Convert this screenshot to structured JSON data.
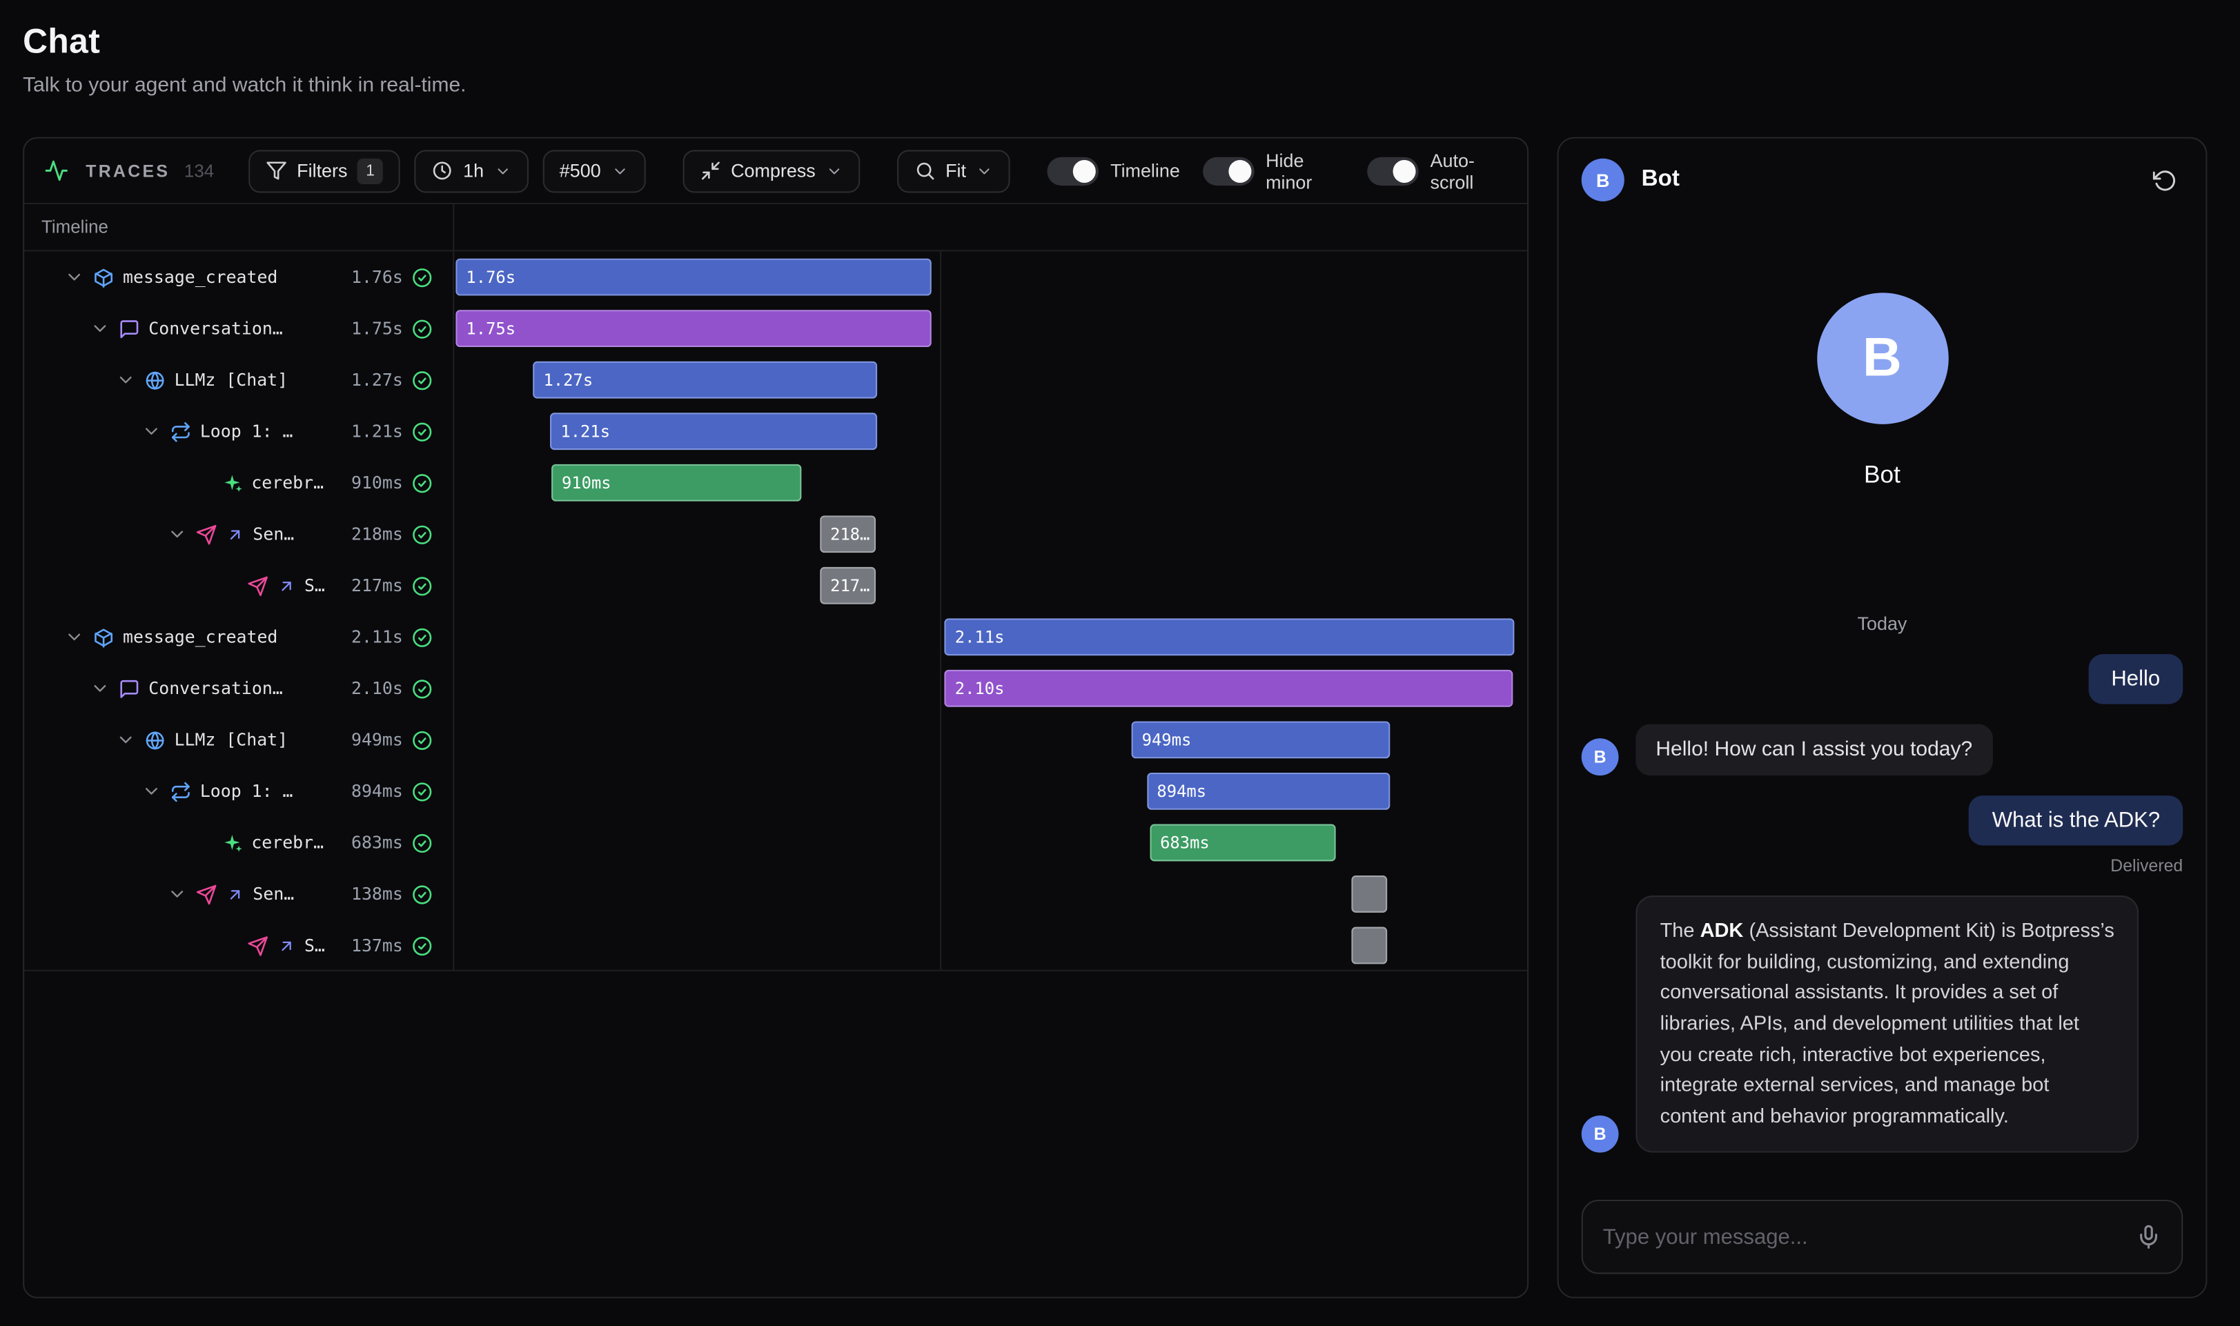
{
  "page": {
    "title": "Chat",
    "subtitle": "Talk to your agent and watch it think in real-time."
  },
  "colors": {
    "bars": {
      "blue": {
        "bg": "#4b66c4",
        "border": "#8096e0"
      },
      "purple": {
        "bg": "#9152cc",
        "border": "#b486e2"
      },
      "green": {
        "bg": "#3c9c63",
        "border": "#7cc49a"
      },
      "gray": {
        "bg": "#75797f",
        "border": "#a3a7ad"
      }
    },
    "check_green": "#4ade80",
    "avatar_blue": "#5f80e8",
    "avatar_light_blue": "#8ba4f2"
  },
  "traces_panel": {
    "toolbar": {
      "traces_label": "TRACES",
      "traces_count": "134",
      "filters_label": "Filters",
      "filters_count": "1",
      "time_range": "1h",
      "limit": "#500",
      "compress_label": "Compress",
      "fit_label": "Fit",
      "toggles": [
        {
          "label": "Timeline",
          "on": true
        },
        {
          "label": "Hide minor",
          "on": true
        },
        {
          "label": "Auto-scroll",
          "on": true
        }
      ]
    },
    "column_header": "Timeline",
    "rows": [
      {
        "name": "message_created",
        "duration": "1.76s",
        "level": 0,
        "chevron": true,
        "icons": [
          "cube"
        ],
        "bar": {
          "label": "1.76s",
          "color": "blue",
          "left": 0.3,
          "width": 44.3
        }
      },
      {
        "name": "Conversation…",
        "duration": "1.75s",
        "level": 1,
        "chevron": true,
        "icons": [
          "chat"
        ],
        "bar": {
          "label": "1.75s",
          "color": "purple",
          "left": 0.3,
          "width": 44.3
        }
      },
      {
        "name": "LLMz [Chat]",
        "duration": "1.27s",
        "level": 2,
        "chevron": true,
        "icons": [
          "globe"
        ],
        "bar": {
          "label": "1.27s",
          "color": "blue",
          "left": 7.5,
          "width": 32.0
        }
      },
      {
        "name": "Loop 1: …",
        "duration": "1.21s",
        "level": 3,
        "chevron": true,
        "icons": [
          "loop"
        ],
        "bar": {
          "label": "1.21s",
          "color": "blue",
          "left": 9.1,
          "width": 30.4
        }
      },
      {
        "name": "cerebr…",
        "duration": "910ms",
        "level": 5,
        "chevron": false,
        "icons": [
          "sparkles"
        ],
        "bar": {
          "label": "910ms",
          "color": "green",
          "left": 9.2,
          "width": 23.3
        }
      },
      {
        "name": "Sen…",
        "duration": "218ms",
        "level": 4,
        "chevron": true,
        "icons": [
          "send",
          "arrow-up-right"
        ],
        "bar": {
          "label": "218…",
          "color": "gray",
          "left": 34.2,
          "width": 5.2
        }
      },
      {
        "name": "S…",
        "duration": "217ms",
        "level": 6,
        "chevron": false,
        "icons": [
          "send",
          "arrow-up-right"
        ],
        "bar": {
          "label": "217…",
          "color": "gray",
          "left": 34.2,
          "width": 5.2
        }
      },
      {
        "name": "message_created",
        "duration": "2.11s",
        "level": 0,
        "chevron": true,
        "icons": [
          "cube"
        ],
        "bar": {
          "label": "2.11s",
          "color": "blue",
          "left": 45.8,
          "width": 53.0
        }
      },
      {
        "name": "Conversation…",
        "duration": "2.10s",
        "level": 1,
        "chevron": true,
        "icons": [
          "chat"
        ],
        "bar": {
          "label": "2.10s",
          "color": "purple",
          "left": 45.8,
          "width": 52.9
        }
      },
      {
        "name": "LLMz [Chat]",
        "duration": "949ms",
        "level": 2,
        "chevron": true,
        "icons": [
          "globe"
        ],
        "bar": {
          "label": "949ms",
          "color": "blue",
          "left": 63.2,
          "width": 24.1
        }
      },
      {
        "name": "Loop 1: …",
        "duration": "894ms",
        "level": 3,
        "chevron": true,
        "icons": [
          "loop"
        ],
        "bar": {
          "label": "894ms",
          "color": "blue",
          "left": 64.6,
          "width": 22.6
        }
      },
      {
        "name": "cerebr…",
        "duration": "683ms",
        "level": 5,
        "chevron": false,
        "icons": [
          "sparkles"
        ],
        "bar": {
          "label": "683ms",
          "color": "green",
          "left": 64.9,
          "width": 17.3
        }
      },
      {
        "name": "Sen…",
        "duration": "138ms",
        "level": 4,
        "chevron": true,
        "icons": [
          "send",
          "arrow-up-right"
        ],
        "bar": {
          "label": "",
          "color": "gray",
          "left": 83.7,
          "width": 3.3
        }
      },
      {
        "name": "S…",
        "duration": "137ms",
        "level": 6,
        "chevron": false,
        "icons": [
          "send",
          "arrow-up-right"
        ],
        "bar": {
          "label": "",
          "color": "gray",
          "left": 83.7,
          "width": 3.3
        }
      }
    ],
    "group_divider_left_pct": 45.3
  },
  "chat_panel": {
    "header": {
      "name": "Bot",
      "avatar_letter": "B"
    },
    "hero": {
      "name": "Bot",
      "avatar_letter": "B"
    },
    "date_divider": "Today",
    "messages": [
      {
        "role": "user",
        "text": "Hello"
      },
      {
        "role": "bot",
        "text": "Hello! How can I assist you today?"
      },
      {
        "role": "user",
        "text": "What is the ADK?",
        "status": "Delivered"
      },
      {
        "role": "bot",
        "large": true,
        "text": "The **ADK** (Assistant Development Kit) is Botpress’s toolkit for building, customizing, and extending conversational assistants. It provides a set of libraries, APIs, and development utilities that let you create rich, interactive bot experiences, integrate external services, and manage bot content and behavior programmatically."
      }
    ],
    "composer": {
      "placeholder": "Type your message..."
    }
  }
}
